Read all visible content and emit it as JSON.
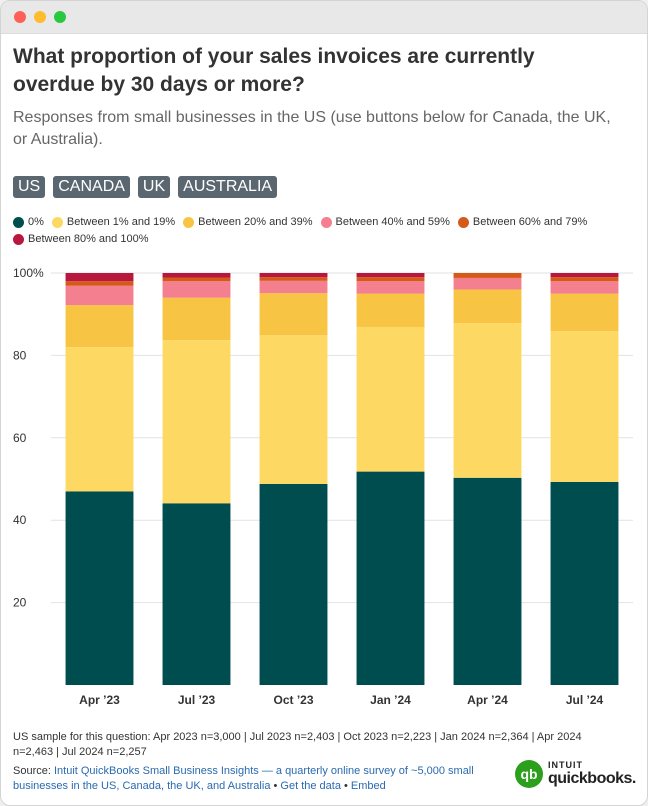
{
  "title": "What proportion of your sales invoices are currently overdue by 30 days or more?",
  "subtitle": "Responses from small businesses in the US (use buttons below for Canada, the UK, or Australia).",
  "buttons": [
    "US",
    "CANADA",
    "UK",
    "AUSTRALIA"
  ],
  "chart_data": {
    "type": "bar",
    "stacked": true,
    "categories": [
      "Apr ’23",
      "Jul ’23",
      "Oct ’23",
      "Jan ’24",
      "Apr ’24",
      "Jul ’24"
    ],
    "ylim": [
      0,
      100
    ],
    "yticks": [
      20,
      40,
      60,
      80,
      100
    ],
    "ytick_labels": [
      "20",
      "40",
      "60",
      "80",
      "100%"
    ],
    "grid": true,
    "legend_position": "top",
    "series": [
      {
        "name": "0%",
        "color": "#004d50",
        "values": [
          47,
          44.1,
          48.8,
          51.8,
          50.3,
          49.3
        ]
      },
      {
        "name": "Between 1% and 19%",
        "color": "#fdd963",
        "values": [
          35,
          39.6,
          36.1,
          35.1,
          37.5,
          36.6
        ]
      },
      {
        "name": "Between 20% and 39%",
        "color": "#f8c443",
        "values": [
          10.2,
          10.3,
          10.2,
          8.1,
          8.2,
          9.1
        ]
      },
      {
        "name": "Between 40% and 59%",
        "color": "#f47f8f",
        "values": [
          4.7,
          4.0,
          3.0,
          3.0,
          2.8,
          3.0
        ]
      },
      {
        "name": "Between 60% and 79%",
        "color": "#d55a1a",
        "values": [
          1.1,
          0.9,
          0.9,
          1.0,
          1.2,
          1.0
        ]
      },
      {
        "name": "Between 80% and 100%",
        "color": "#b8183d",
        "values": [
          2.0,
          1.1,
          1.0,
          1.0,
          0,
          1.0
        ]
      }
    ]
  },
  "footnote": "US sample for this question: Apr 2023 n=3,000 | Jul 2023 n=2,403 | Oct 2023 n=2,223 | Jan 2024 n=2,364 | Apr 2024 n=2,463 | Jul 2024 n=2,257",
  "source": {
    "prefix": "Source: ",
    "link": "Intuit QuickBooks Small Business Insights — a quarterly online survey of ~5,000 small businesses in the US, Canada, the UK, and Australia",
    "sep": " • ",
    "get_data": "Get the data",
    "embed": "Embed"
  },
  "logo": {
    "mark": "qb",
    "top": "INTUIT",
    "bottom": "quickbooks."
  }
}
